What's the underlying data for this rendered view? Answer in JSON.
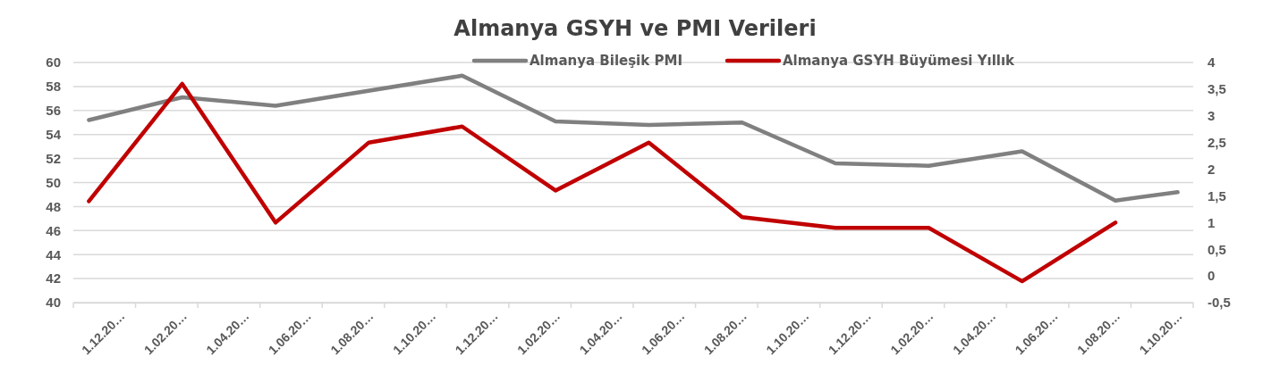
{
  "chart_data": {
    "type": "line",
    "title": "Almanya GSYH ve PMI Verileri",
    "categories": [
      null,
      "1.12.20…",
      null,
      "1.02.20…",
      null,
      "1.04.20…",
      null,
      "1.06.20…",
      null,
      "1.08.20…",
      null,
      "1.10.20…",
      null,
      "1.12.20…",
      null,
      "1.02.20…",
      null,
      "1.04.20…",
      null,
      "1.06.20…",
      null,
      "1.08.20…",
      null,
      "1.10.20…",
      null,
      "1.12.20…",
      null,
      "1.02.20…",
      null,
      "1.04.20…",
      null,
      "1.06.20…",
      null,
      "1.08.20…",
      null,
      "1.10.20…"
    ],
    "ylim": [
      40,
      60
    ],
    "yticks": [
      40,
      42,
      44,
      46,
      48,
      50,
      52,
      54,
      56,
      58,
      60
    ],
    "y2lim": [
      -0.5,
      4
    ],
    "y2ticks": [
      {
        "value": -0.5,
        "label": "-0,5"
      },
      0,
      {
        "value": 0.5,
        "label": "0,5"
      },
      1,
      {
        "value": 1.5,
        "label": "1,5"
      },
      2,
      {
        "value": 2.5,
        "label": "2,5"
      },
      3,
      {
        "value": 3.5,
        "label": "3,5"
      },
      4
    ],
    "grid": "y",
    "legend": "top",
    "marker": "none",
    "line_style": "solid",
    "series": [
      {
        "name": "Almanya Bileşik PMI",
        "color": "#808080",
        "values": [
          55.2,
          null,
          null,
          57.1,
          null,
          null,
          56.4,
          null,
          null,
          null,
          null,
          null,
          58.9,
          null,
          null,
          55.1,
          null,
          null,
          54.8,
          null,
          null,
          55.0,
          null,
          null,
          51.6,
          null,
          null,
          51.4,
          null,
          null,
          52.6,
          null,
          null,
          48.5,
          null,
          49.2
        ]
      },
      {
        "name": "Almanya GSYH Büyümesi Yıllık",
        "color": "#c00000",
        "axis": "y2",
        "values": [
          1.4,
          null,
          null,
          3.6,
          null,
          null,
          1.0,
          null,
          null,
          2.5,
          null,
          null,
          2.8,
          null,
          null,
          1.6,
          null,
          null,
          2.5,
          null,
          null,
          1.1,
          null,
          null,
          0.9,
          null,
          null,
          0.9,
          null,
          null,
          -0.1,
          null,
          null,
          1.0,
          null,
          null
        ]
      }
    ]
  }
}
